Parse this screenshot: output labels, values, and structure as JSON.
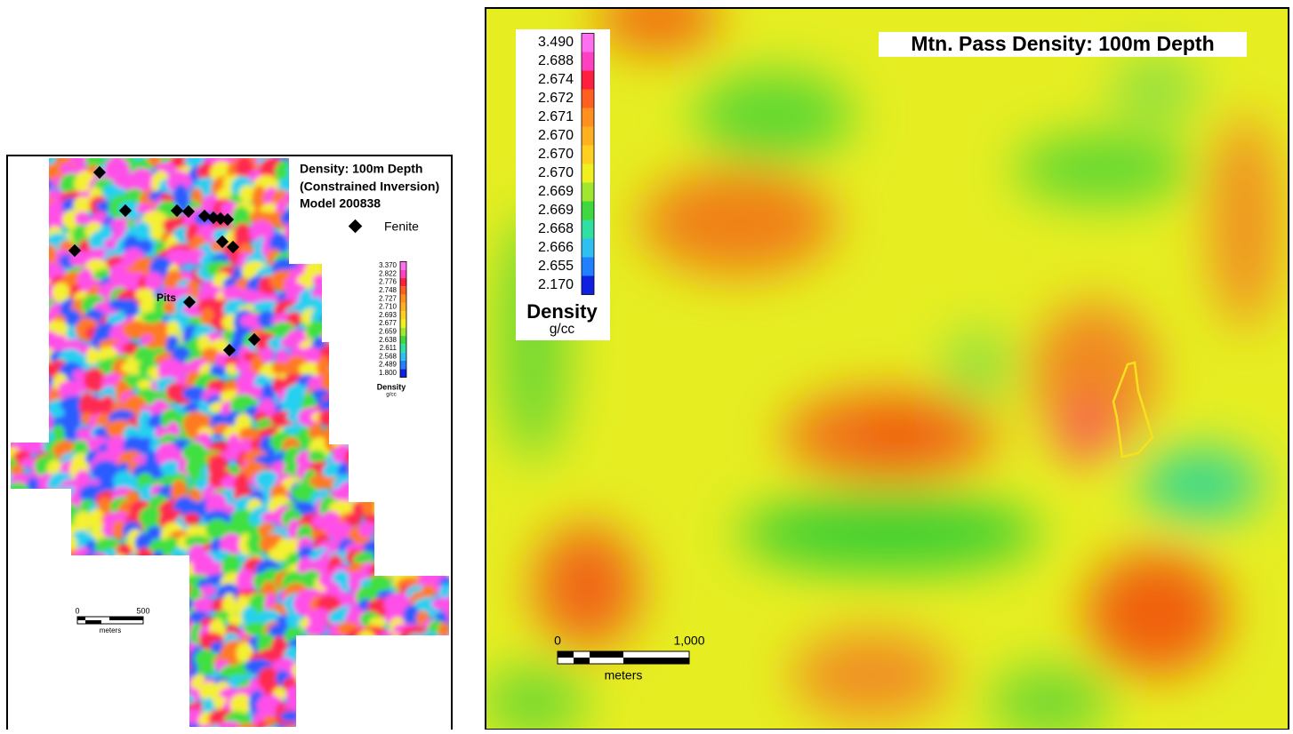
{
  "left_panel": {
    "title_lines": [
      "Density: 100m Depth",
      "(Constrained Inversion)",
      "Model 200838"
    ],
    "legend_symbol": "Fenite",
    "map_label": "Pits",
    "colorbar": {
      "labels": [
        "3.370",
        "2.822",
        "2.776",
        "2.748",
        "2.727",
        "2.710",
        "2.693",
        "2.677",
        "2.659",
        "2.638",
        "2.611",
        "2.568",
        "2.489",
        "1.800"
      ],
      "title": "Density",
      "unit": "g/cc"
    },
    "scale_bar": {
      "start": "0",
      "end": "500",
      "unit": "meters"
    }
  },
  "right_panel": {
    "title": "Mtn. Pass Density: 100m Depth",
    "colorbar": {
      "labels": [
        "3.490",
        "2.688",
        "2.674",
        "2.672",
        "2.671",
        "2.670",
        "2.670",
        "2.670",
        "2.669",
        "2.669",
        "2.668",
        "2.666",
        "2.655",
        "2.170"
      ],
      "title": "Density",
      "unit": "g/cc"
    },
    "scale_bar": {
      "start": "0",
      "end": "1,000",
      "unit": "meters"
    }
  }
}
